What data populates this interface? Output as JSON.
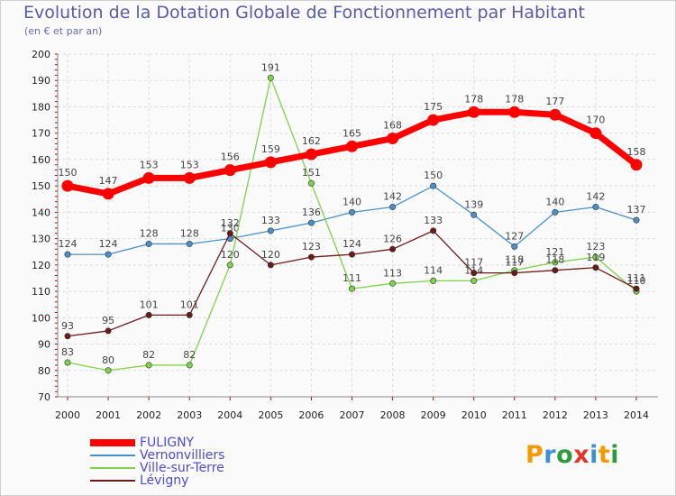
{
  "title": "Evolution de la Dotation Globale de Fonctionnement par Habitant",
  "subtitle": "(en € et par an)",
  "logo": {
    "text": "Proxiti",
    "colors": [
      "#f29a00",
      "#3f8fd6",
      "#2f9a3c",
      "#e63629",
      "#3f8fd6",
      "#f29a00",
      "#2f9a3c"
    ]
  },
  "chart_data": {
    "type": "line",
    "title": "Evolution de la Dotation Globale de Fonctionnement par Habitant",
    "subtitle": "(en € et par an)",
    "xlabel": "",
    "ylabel": "",
    "ylim": [
      70,
      200
    ],
    "yticks": [
      "70",
      "80",
      "90",
      "100",
      "110",
      "120",
      "130",
      "140",
      "150",
      "160",
      "170",
      "180",
      "190",
      "200"
    ],
    "categories": [
      "2000",
      "2001",
      "2002",
      "2003",
      "2004",
      "2005",
      "2006",
      "2007",
      "2008",
      "2009",
      "2010",
      "2011",
      "2012",
      "2013",
      "2014"
    ],
    "grid": true,
    "legend_position": "bottom-left",
    "series": [
      {
        "name": "FULIGNY",
        "color": "#ff0000",
        "emphasis": true,
        "values": [
          150,
          147,
          153,
          153,
          156,
          159,
          162,
          165,
          168,
          175,
          178,
          178,
          177,
          170,
          158
        ]
      },
      {
        "name": "Vernonvilliers",
        "color": "#4a90c8",
        "emphasis": false,
        "values": [
          124,
          124,
          128,
          128,
          130,
          133,
          136,
          140,
          142,
          150,
          139,
          127,
          140,
          142,
          137
        ]
      },
      {
        "name": "Ville-sur-Terre",
        "color": "#7ed34a",
        "emphasis": false,
        "values": [
          83,
          80,
          82,
          82,
          120,
          191,
          151,
          111,
          113,
          114,
          114,
          118,
          121,
          123,
          110
        ]
      },
      {
        "name": "Lévigny",
        "color": "#6b1a1a",
        "emphasis": false,
        "values": [
          93,
          95,
          101,
          101,
          132,
          120,
          123,
          124,
          126,
          133,
          117,
          117,
          118,
          119,
          111
        ]
      }
    ]
  }
}
